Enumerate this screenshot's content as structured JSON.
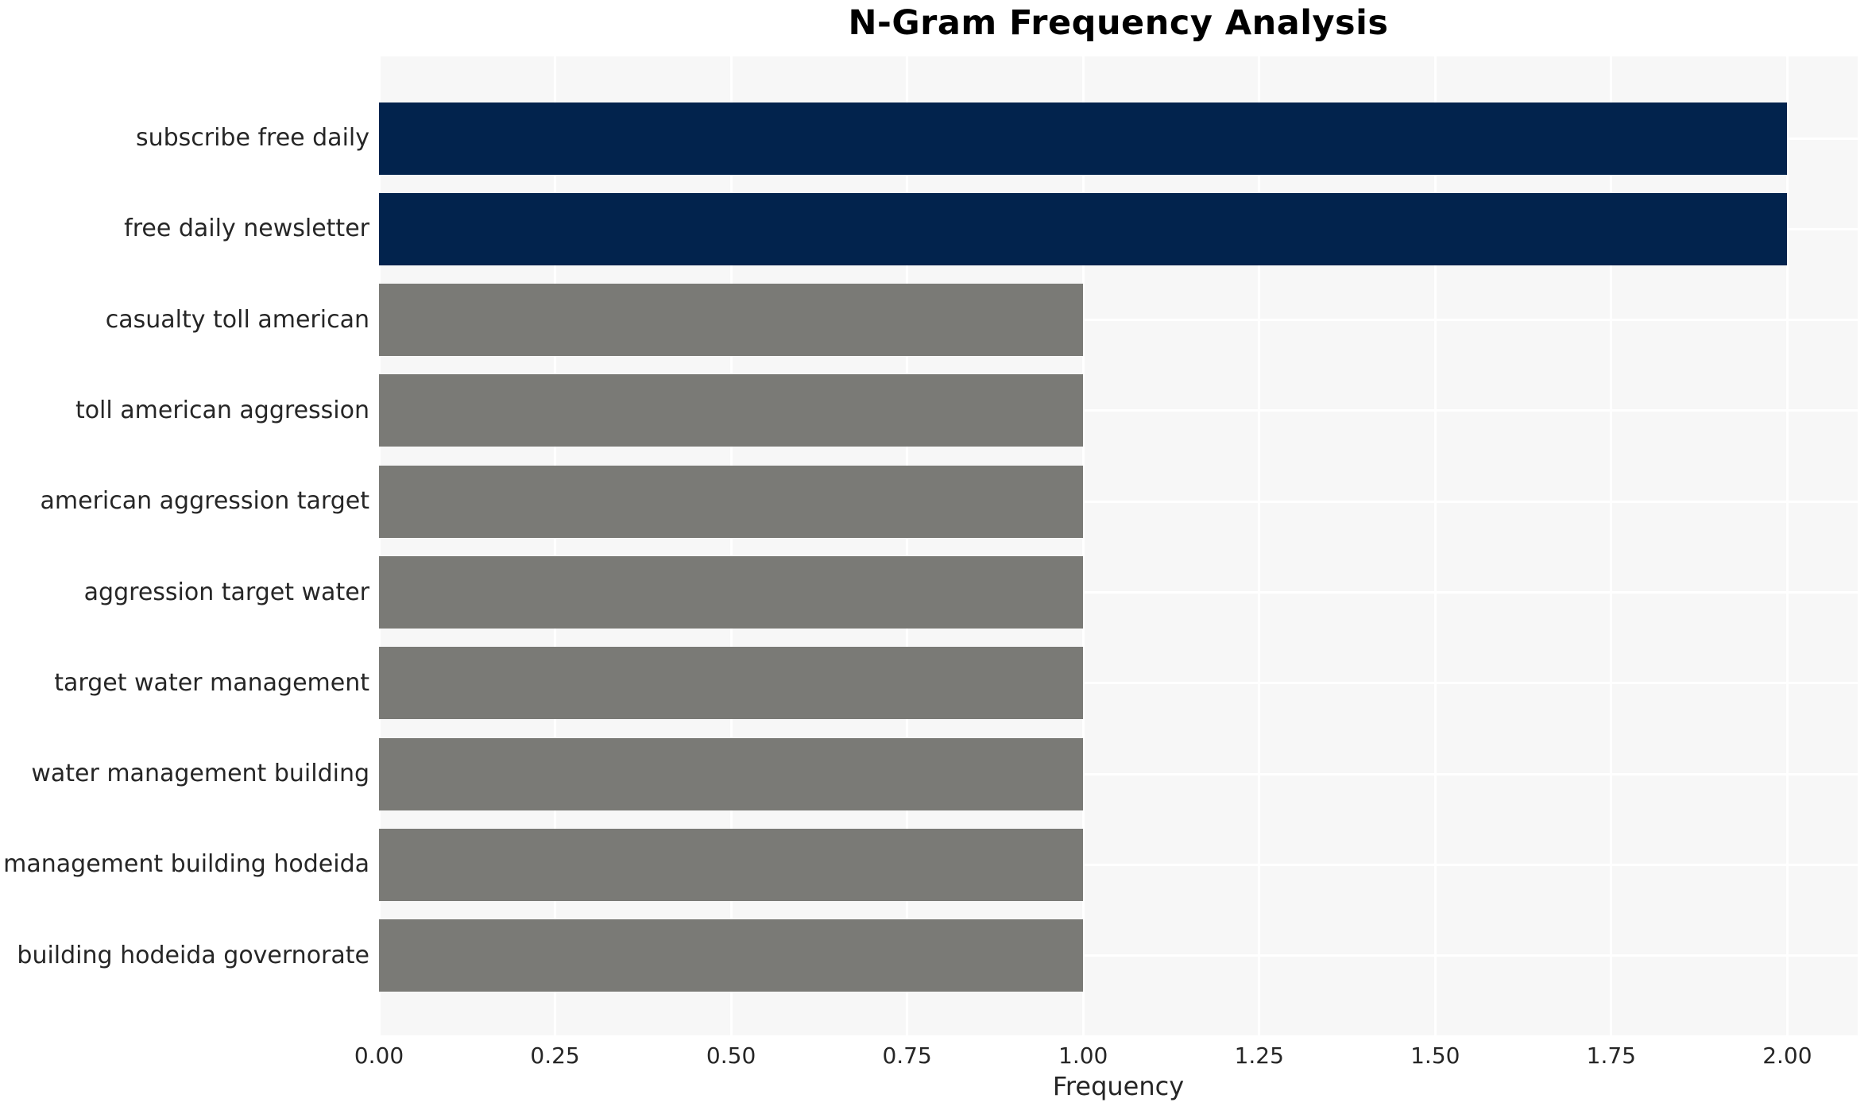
{
  "chart_data": {
    "type": "bar",
    "orientation": "horizontal",
    "title": "N-Gram Frequency Analysis",
    "xlabel": "Frequency",
    "ylabel": "",
    "categories": [
      "subscribe free daily",
      "free daily newsletter",
      "casualty toll american",
      "toll american aggression",
      "american aggression target",
      "aggression target water",
      "target water management",
      "water management building",
      "management building hodeida",
      "building hodeida governorate"
    ],
    "values": [
      2,
      2,
      1,
      1,
      1,
      1,
      1,
      1,
      1,
      1
    ],
    "bar_colors": [
      "#02234d",
      "#02234d",
      "#7a7a76",
      "#7a7a76",
      "#7a7a76",
      "#7a7a76",
      "#7a7a76",
      "#7a7a76",
      "#7a7a76",
      "#7a7a76"
    ],
    "xlim": [
      0,
      2.1
    ],
    "xtick_values": [
      0,
      0.25,
      0.5,
      0.75,
      1.0,
      1.25,
      1.5,
      1.75,
      2.0
    ],
    "xtick_labels": [
      "0.00",
      "0.25",
      "0.50",
      "0.75",
      "1.00",
      "1.25",
      "1.50",
      "1.75",
      "2.00"
    ],
    "grid": true,
    "legend": false,
    "colors": {
      "plot_background": "#f7f7f7",
      "gridline": "#ffffff",
      "tick_text": "#262626",
      "title_text": "#000000"
    }
  }
}
